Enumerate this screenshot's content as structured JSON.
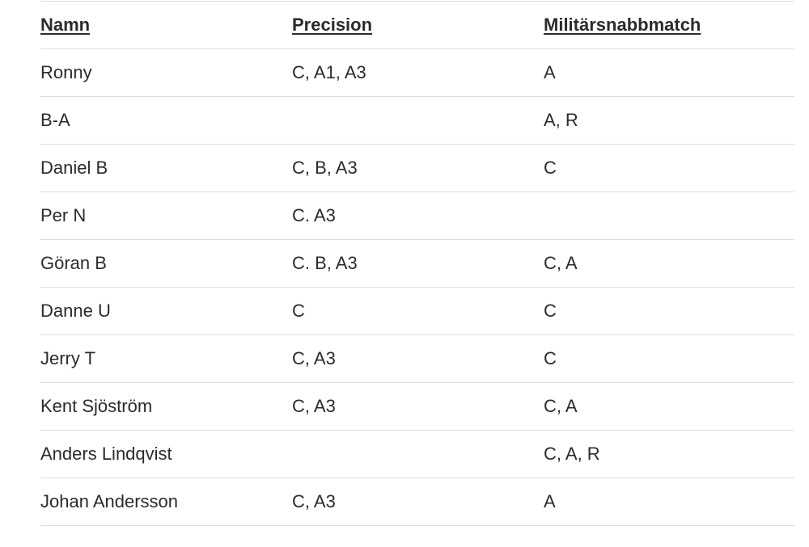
{
  "table": {
    "headers": [
      "Namn",
      "Precision",
      "Militärsnabbmatch"
    ],
    "rows": [
      [
        "Ronny",
        "C, A1, A3",
        "A"
      ],
      [
        "B-A",
        "",
        "A, R"
      ],
      [
        "Daniel B",
        "C, B, A3",
        "C"
      ],
      [
        "Per N",
        "C. A3",
        ""
      ],
      [
        "Göran B",
        "C. B, A3",
        "C, A"
      ],
      [
        "Danne U",
        "C",
        "C"
      ],
      [
        "Jerry T",
        "C, A3",
        "C"
      ],
      [
        "Kent Sjöström",
        "C, A3",
        "C, A"
      ],
      [
        "Anders Lindqvist",
        "",
        "C, A, R"
      ],
      [
        "Johan Andersson",
        "C, A3",
        "A"
      ]
    ]
  },
  "colors": {
    "text": "#2b2b2b",
    "rule": "#dddddd",
    "background": "#ffffff"
  }
}
